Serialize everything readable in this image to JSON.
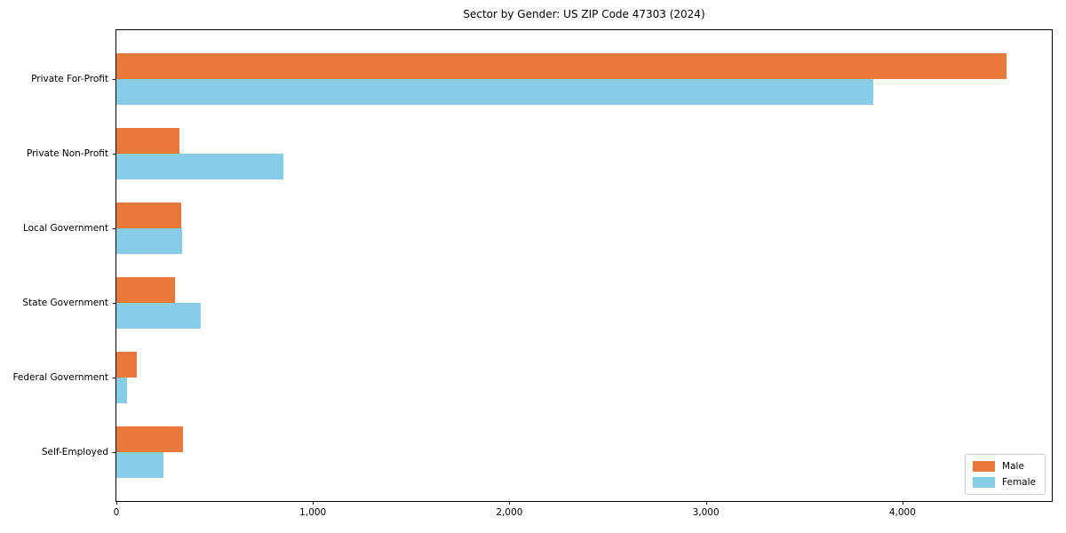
{
  "title": "Sector by Gender: US ZIP Code 47303 (2024)",
  "colors": {
    "male": "#E8793B",
    "female": "#87CDE8",
    "axis": "#000000",
    "legend_border": "#CCCCCC",
    "background": "#FFFFFF"
  },
  "chart_data": {
    "type": "bar",
    "orientation": "horizontal",
    "title": "Sector by Gender: US ZIP Code 47303 (2024)",
    "categories": [
      "Private For-Profit",
      "Private Non-Profit",
      "Local Government",
      "State Government",
      "Federal Government",
      "Self-Employed"
    ],
    "series": [
      {
        "name": "Male",
        "color": "#E8793B",
        "values": [
          4530,
          320,
          330,
          300,
          105,
          340
        ]
      },
      {
        "name": "Female",
        "color": "#87CDE8",
        "values": [
          3850,
          850,
          335,
          430,
          55,
          240
        ]
      }
    ],
    "xlabel": "",
    "ylabel": "",
    "xlim": [
      0,
      4760
    ],
    "xticks": [
      0,
      1000,
      2000,
      3000,
      4000
    ],
    "xtick_labels": [
      "0",
      "1,000",
      "2,000",
      "3,000",
      "4,000"
    ],
    "grid": false,
    "legend_position": "lower right",
    "legend_labels": [
      "Male",
      "Female"
    ]
  }
}
